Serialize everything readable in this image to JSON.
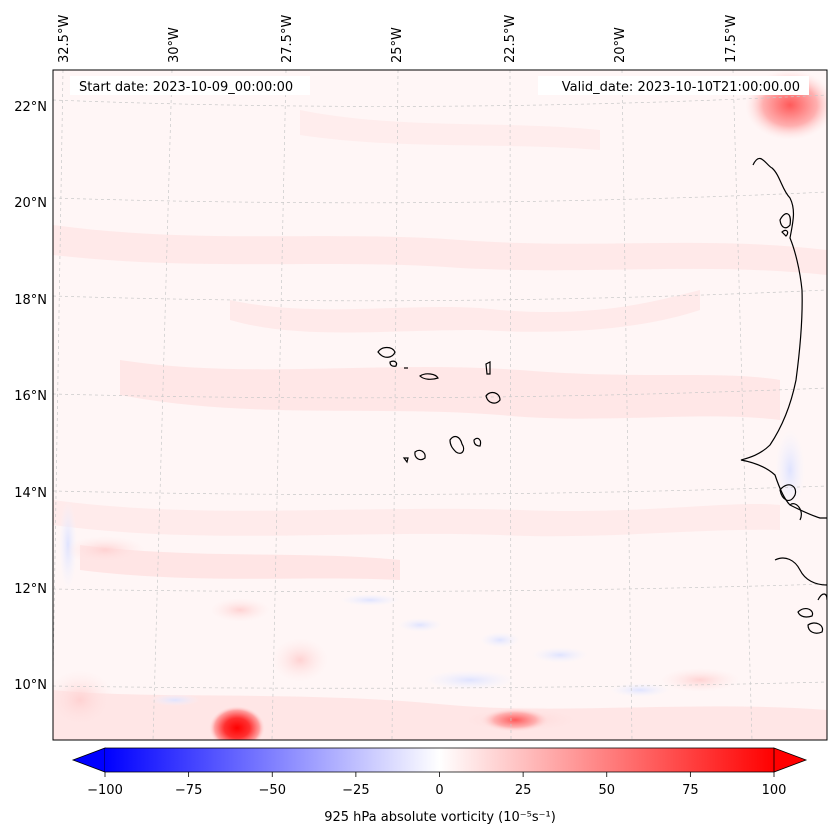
{
  "header": {
    "start_date": "Start date: 2023-10-09_00:00:00",
    "valid_date": "Valid_date: 2023-10-10T21:00:00.00"
  },
  "lon_labels": [
    "32.5°W",
    "30°W",
    "27.5°W",
    "25°W",
    "22.5°W",
    "20°W",
    "17.5°W"
  ],
  "lat_labels": [
    "22°N",
    "20°N",
    "18°N",
    "16°N",
    "14°N",
    "12°N",
    "10°N"
  ],
  "colorbar": {
    "ticks": [
      "−100",
      "−75",
      "−50",
      "−25",
      "0",
      "25",
      "50",
      "75",
      "100"
    ],
    "label": "925 hPa absolute vorticity (10⁻⁵s⁻¹)",
    "min": -100,
    "max": 100,
    "low_color": "#0000ff",
    "mid_color": "#ffffff",
    "high_color": "#ff0000"
  },
  "colors": {
    "background_field": "#fff6f6",
    "coastline": "#000000",
    "gridline": "#c8c8c8"
  }
}
